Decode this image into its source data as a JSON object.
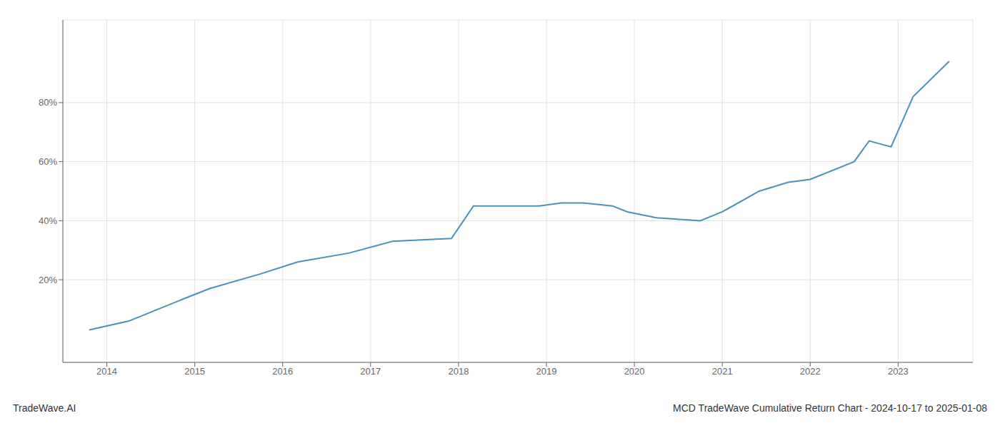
{
  "chart_data": {
    "type": "line",
    "title": "MCD TradeWave Cumulative Return Chart - 2024-10-17 to 2025-01-08",
    "annotations": [
      "TradeWave.AI"
    ],
    "x": [
      2013.8,
      2014.25,
      2014.83,
      2015.17,
      2015.75,
      2016.17,
      2016.75,
      2017.25,
      2017.92,
      2018.17,
      2018.92,
      2019.17,
      2019.42,
      2019.75,
      2019.92,
      2020.25,
      2020.75,
      2021.0,
      2021.42,
      2021.75,
      2022.0,
      2022.5,
      2022.67,
      2022.92,
      2023.17,
      2023.58
    ],
    "values": [
      3,
      6,
      13,
      17,
      22,
      26,
      29,
      33,
      34,
      45,
      45,
      46,
      46,
      45,
      43,
      41,
      40,
      43,
      50,
      53,
      54,
      60,
      67,
      65,
      82,
      94
    ],
    "color": "#4a90b8",
    "xlim": [
      2013.5,
      2023.85
    ],
    "xticks": [
      2014,
      2015,
      2016,
      2017,
      2018,
      2019,
      2020,
      2021,
      2022,
      2023
    ],
    "ylim": [
      -8,
      108
    ],
    "yticks": [
      {
        "value": 20,
        "label": "20%"
      },
      {
        "value": 40,
        "label": "40%"
      },
      {
        "value": 60,
        "label": "60%"
      },
      {
        "value": 80,
        "label": "80%"
      }
    ],
    "grid": true
  }
}
